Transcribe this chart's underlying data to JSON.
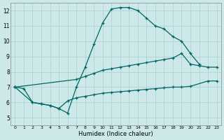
{
  "xlabel": "Humidex (Indice chaleur)",
  "xlim": [
    -0.5,
    23.5
  ],
  "ylim": [
    4.5,
    12.5
  ],
  "xticks": [
    0,
    1,
    2,
    3,
    4,
    5,
    6,
    7,
    8,
    9,
    10,
    11,
    12,
    13,
    14,
    15,
    16,
    17,
    18,
    19,
    20,
    21,
    22,
    23
  ],
  "yticks": [
    5,
    6,
    7,
    8,
    9,
    10,
    11,
    12
  ],
  "background_color": "#cde8e8",
  "grid_color": "#aacfcf",
  "line_color": "#006666",
  "series1_x": [
    0,
    1,
    2,
    3,
    4,
    5,
    6,
    7,
    8,
    9,
    10,
    11,
    12,
    13,
    14,
    15,
    16,
    17,
    18,
    19,
    20,
    21
  ],
  "series1_y": [
    7.0,
    6.9,
    6.0,
    5.9,
    5.8,
    5.6,
    5.3,
    7.0,
    8.3,
    9.8,
    11.2,
    12.1,
    12.2,
    12.2,
    12.0,
    11.5,
    11.0,
    10.8,
    10.3,
    10.0,
    9.2,
    8.5
  ],
  "series2_x": [
    0,
    7,
    8,
    9,
    10,
    11,
    12,
    13,
    14,
    15,
    16,
    17,
    18,
    19,
    20,
    21,
    22,
    23
  ],
  "series2_y": [
    7.0,
    7.5,
    7.7,
    7.9,
    8.1,
    8.2,
    8.3,
    8.4,
    8.5,
    8.6,
    8.7,
    8.8,
    8.9,
    9.2,
    8.5,
    8.4,
    8.3,
    8.3
  ],
  "series3_x": [
    0,
    2,
    3,
    4,
    5,
    6,
    7,
    8,
    9,
    10,
    11,
    12,
    13,
    14,
    15,
    16,
    17,
    18,
    19,
    20,
    22,
    23
  ],
  "series3_y": [
    7.0,
    6.0,
    5.9,
    5.8,
    5.6,
    6.1,
    6.3,
    6.4,
    6.5,
    6.6,
    6.65,
    6.7,
    6.75,
    6.8,
    6.85,
    6.9,
    6.95,
    7.0,
    7.0,
    7.05,
    7.4,
    7.4
  ]
}
